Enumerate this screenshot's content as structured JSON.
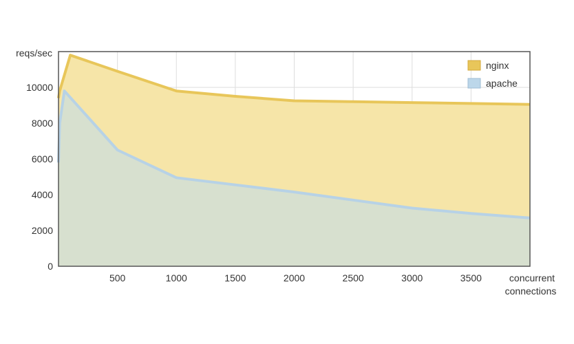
{
  "chart_data": {
    "type": "area",
    "ylabel": "reqs/sec",
    "xlabel": [
      "concurrent",
      "connections"
    ],
    "xlim": [
      0,
      4000
    ],
    "ylim": [
      0,
      12000
    ],
    "x_ticks": [
      500,
      1000,
      1500,
      2000,
      2500,
      3000,
      3500
    ],
    "y_ticks": [
      0,
      2000,
      4000,
      6000,
      8000,
      10000
    ],
    "grid": true,
    "legend_position": "top-right",
    "series": [
      {
        "name": "nginx",
        "color": "#e8c65a",
        "fill": "#f6e5a8",
        "x": [
          0,
          10,
          100,
          500,
          1000,
          1500,
          2000,
          2500,
          3000,
          3500,
          4000
        ],
        "y": [
          9400,
          9800,
          11800,
          10900,
          9800,
          9500,
          9250,
          9200,
          9150,
          9100,
          9050
        ]
      },
      {
        "name": "apache",
        "color": "#b7d2e6",
        "fill": "#d7e0cf",
        "x": [
          0,
          10,
          50,
          500,
          1000,
          1500,
          2000,
          2500,
          3000,
          3500,
          4000
        ],
        "y": [
          5800,
          8000,
          9800,
          6500,
          4950,
          4550,
          4150,
          3700,
          3250,
          2950,
          2700
        ]
      }
    ]
  }
}
